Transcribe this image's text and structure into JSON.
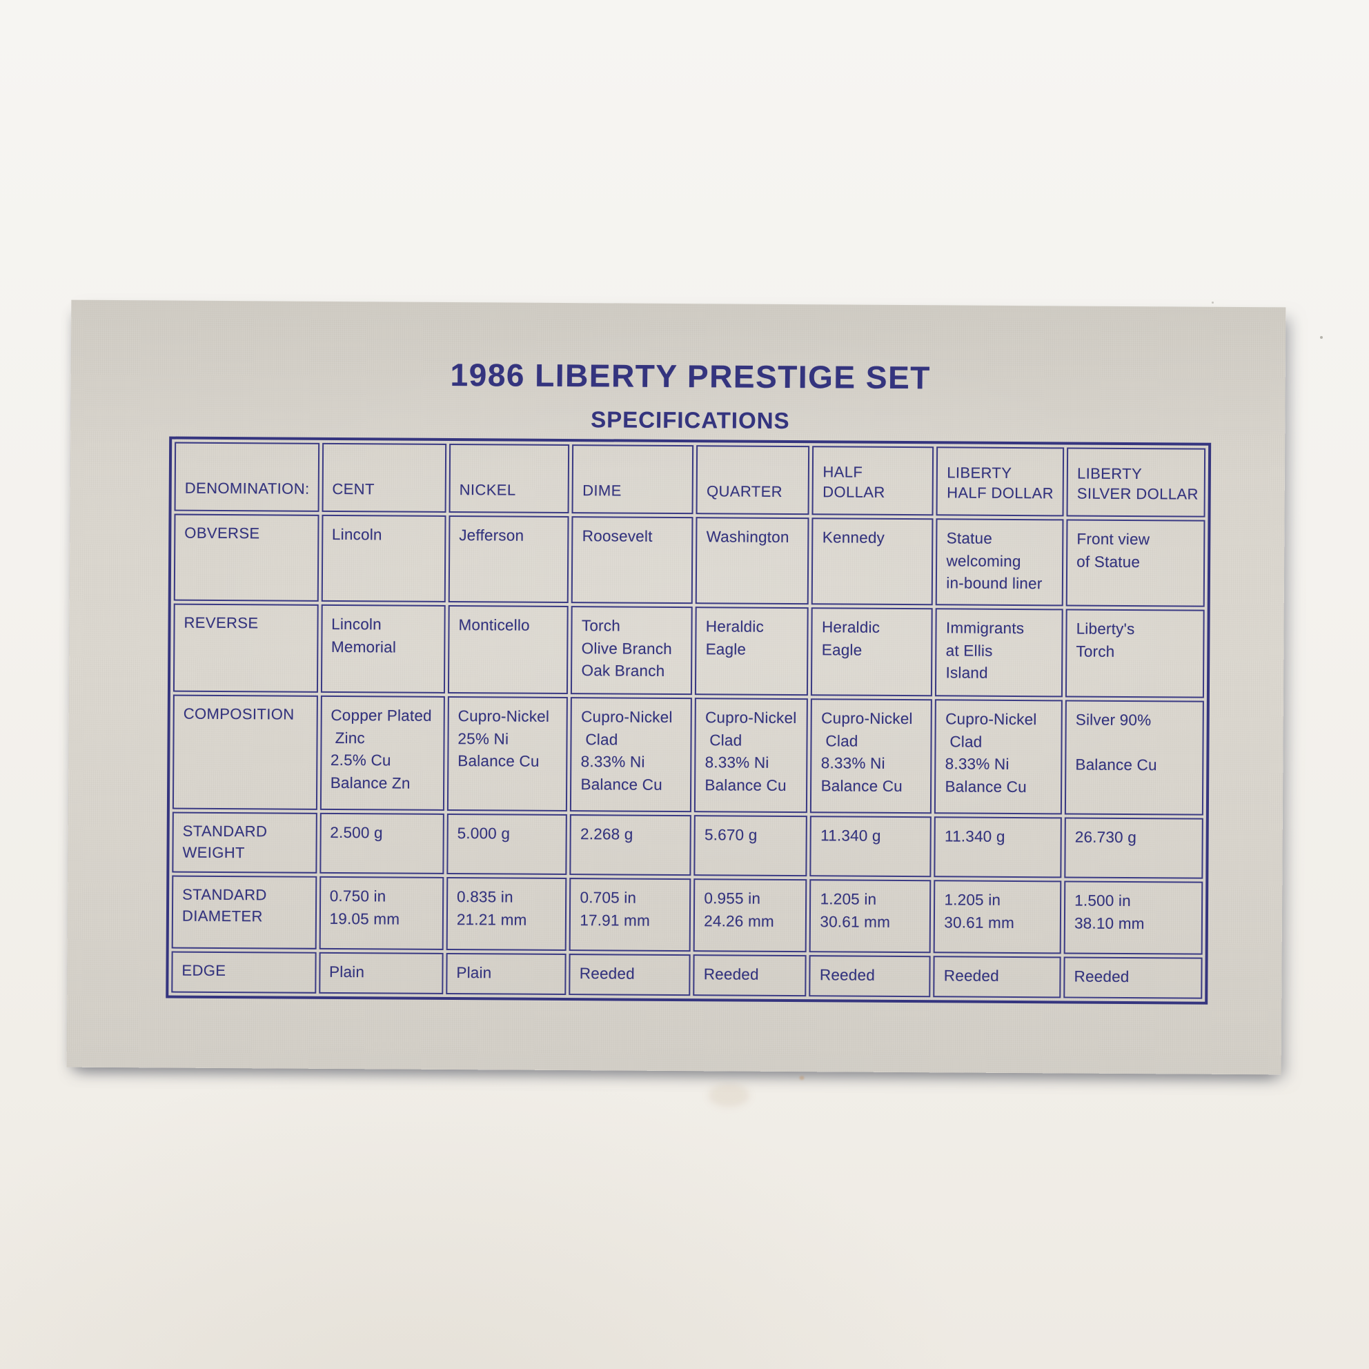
{
  "card": {
    "title": "1986 LIBERTY PRESTIGE SET",
    "subtitle": "SPECIFICATIONS",
    "table": {
      "corner_label": "DENOMINATION:",
      "columns": [
        "CENT",
        "NICKEL",
        "DIME",
        "QUARTER",
        "HALF\nDOLLAR",
        "LIBERTY\nHALF DOLLAR",
        "LIBERTY\nSILVER DOLLAR"
      ],
      "rows": [
        {
          "label": "OBVERSE",
          "cells": [
            "Lincoln",
            "Jefferson",
            "Roosevelt",
            "Washington",
            "Kennedy",
            "Statue\nwelcoming\nin-bound liner",
            "Front view\nof Statue"
          ]
        },
        {
          "label": "REVERSE",
          "cells": [
            "Lincoln\nMemorial",
            "Monticello",
            "Torch\nOlive Branch\nOak Branch",
            "Heraldic\nEagle",
            "Heraldic\nEagle",
            "Immigrants\nat Ellis\nIsland",
            "Liberty's\nTorch"
          ]
        },
        {
          "label": "COMPOSITION",
          "cells": [
            "Copper Plated\n Zinc\n2.5% Cu\nBalance Zn",
            "Cupro-Nickel\n25% Ni\nBalance Cu",
            "Cupro-Nickel\n Clad\n8.33% Ni\nBalance Cu",
            "Cupro-Nickel\n Clad\n8.33% Ni\nBalance Cu",
            "Cupro-Nickel\n Clad\n8.33% Ni\nBalance Cu",
            "Cupro-Nickel\n Clad\n8.33% Ni\nBalance Cu",
            "Silver 90%\n\nBalance Cu"
          ]
        },
        {
          "label": "STANDARD\nWEIGHT",
          "cells": [
            "2.500 g",
            "5.000 g",
            "2.268 g",
            "5.670 g",
            "11.340 g",
            "11.340 g",
            "26.730 g"
          ]
        },
        {
          "label": "STANDARD\nDIAMETER",
          "cells": [
            "0.750 in\n19.05 mm",
            "0.835 in\n21.21 mm",
            "0.705 in\n17.91 mm",
            "0.955 in\n24.26 mm",
            "1.205 in\n30.61 mm",
            "1.205 in\n30.61 mm",
            "1.500 in\n38.10 mm"
          ]
        },
        {
          "label": "EDGE",
          "cells": [
            "Plain",
            "Plain",
            "Reeded",
            "Reeded",
            "Reeded",
            "Reeded",
            "Reeded"
          ]
        }
      ]
    }
  },
  "colors": {
    "ink": "#34347E",
    "card_background": "#D7D3CB",
    "photo_background": "#F4F2ED"
  }
}
